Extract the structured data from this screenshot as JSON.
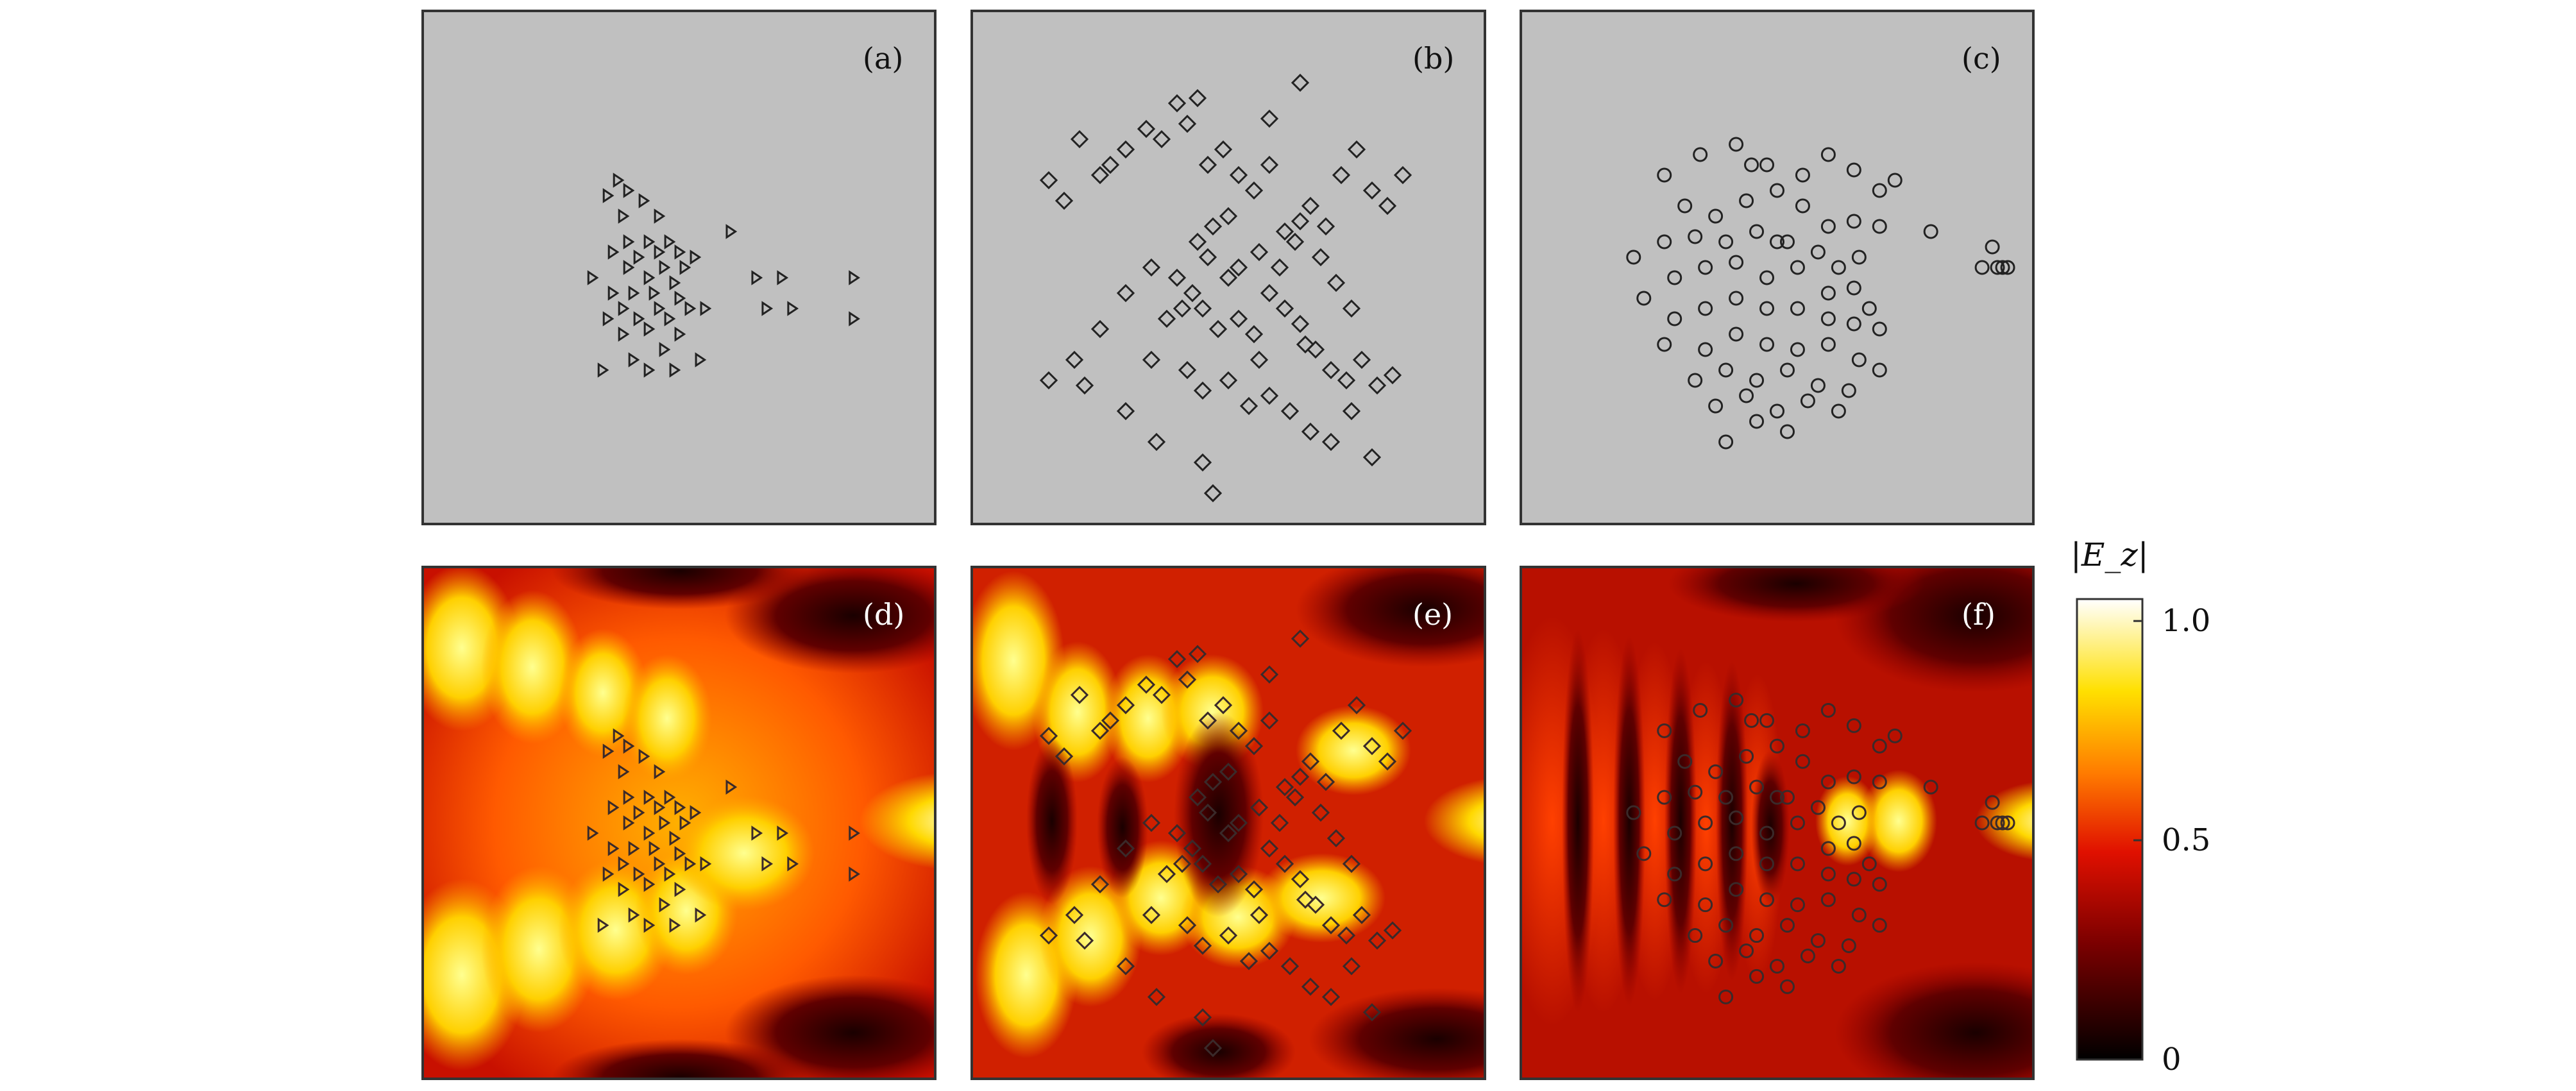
{
  "chart_data": {
    "type": "scatter",
    "panels": [
      {
        "id": "a",
        "label": "(a)",
        "marker": "triangle",
        "background": "#c0c0c0",
        "points": [
          [
            0.33,
            0.52
          ],
          [
            0.36,
            0.36
          ],
          [
            0.38,
            0.33
          ],
          [
            0.4,
            0.35
          ],
          [
            0.39,
            0.4
          ],
          [
            0.4,
            0.45
          ],
          [
            0.37,
            0.47
          ],
          [
            0.4,
            0.5
          ],
          [
            0.42,
            0.48
          ],
          [
            0.43,
            0.37
          ],
          [
            0.44,
            0.45
          ],
          [
            0.44,
            0.52
          ],
          [
            0.46,
            0.4
          ],
          [
            0.46,
            0.47
          ],
          [
            0.47,
            0.5
          ],
          [
            0.48,
            0.45
          ],
          [
            0.49,
            0.53
          ],
          [
            0.5,
            0.47
          ],
          [
            0.51,
            0.5
          ],
          [
            0.45,
            0.55
          ],
          [
            0.41,
            0.55
          ],
          [
            0.37,
            0.55
          ],
          [
            0.36,
            0.6
          ],
          [
            0.39,
            0.58
          ],
          [
            0.42,
            0.6
          ],
          [
            0.44,
            0.62
          ],
          [
            0.46,
            0.58
          ],
          [
            0.48,
            0.6
          ],
          [
            0.5,
            0.56
          ],
          [
            0.47,
            0.66
          ],
          [
            0.44,
            0.7
          ],
          [
            0.41,
            0.68
          ],
          [
            0.39,
            0.63
          ],
          [
            0.35,
            0.7
          ],
          [
            0.5,
            0.63
          ],
          [
            0.52,
            0.58
          ],
          [
            0.53,
            0.48
          ],
          [
            0.55,
            0.58
          ],
          [
            0.54,
            0.68
          ],
          [
            0.49,
            0.7
          ],
          [
            0.6,
            0.43
          ],
          [
            0.65,
            0.52
          ],
          [
            0.67,
            0.58
          ],
          [
            0.7,
            0.52
          ],
          [
            0.72,
            0.58
          ],
          [
            0.84,
            0.52
          ],
          [
            0.84,
            0.6
          ]
        ]
      },
      {
        "id": "b",
        "label": "(b)",
        "marker": "diamond",
        "background": "#c0c0c0",
        "points": [
          [
            0.15,
            0.33
          ],
          [
            0.18,
            0.37
          ],
          [
            0.21,
            0.25
          ],
          [
            0.25,
            0.32
          ],
          [
            0.27,
            0.3
          ],
          [
            0.3,
            0.27
          ],
          [
            0.34,
            0.23
          ],
          [
            0.37,
            0.25
          ],
          [
            0.4,
            0.18
          ],
          [
            0.42,
            0.22
          ],
          [
            0.44,
            0.17
          ],
          [
            0.46,
            0.3
          ],
          [
            0.49,
            0.27
          ],
          [
            0.52,
            0.32
          ],
          [
            0.55,
            0.35
          ],
          [
            0.58,
            0.3
          ],
          [
            0.61,
            0.43
          ],
          [
            0.64,
            0.41
          ],
          [
            0.66,
            0.38
          ],
          [
            0.69,
            0.42
          ],
          [
            0.72,
            0.32
          ],
          [
            0.75,
            0.27
          ],
          [
            0.78,
            0.35
          ],
          [
            0.81,
            0.38
          ],
          [
            0.84,
            0.32
          ],
          [
            0.58,
            0.21
          ],
          [
            0.64,
            0.14
          ],
          [
            0.5,
            0.4
          ],
          [
            0.47,
            0.42
          ],
          [
            0.44,
            0.45
          ],
          [
            0.46,
            0.48
          ],
          [
            0.5,
            0.52
          ],
          [
            0.52,
            0.5
          ],
          [
            0.56,
            0.47
          ],
          [
            0.6,
            0.5
          ],
          [
            0.63,
            0.45
          ],
          [
            0.68,
            0.48
          ],
          [
            0.71,
            0.53
          ],
          [
            0.74,
            0.58
          ],
          [
            0.4,
            0.52
          ],
          [
            0.43,
            0.55
          ],
          [
            0.41,
            0.58
          ],
          [
            0.45,
            0.58
          ],
          [
            0.48,
            0.62
          ],
          [
            0.52,
            0.6
          ],
          [
            0.55,
            0.63
          ],
          [
            0.58,
            0.55
          ],
          [
            0.61,
            0.58
          ],
          [
            0.64,
            0.61
          ],
          [
            0.67,
            0.66
          ],
          [
            0.7,
            0.7
          ],
          [
            0.73,
            0.72
          ],
          [
            0.76,
            0.68
          ],
          [
            0.79,
            0.73
          ],
          [
            0.82,
            0.71
          ],
          [
            0.35,
            0.5
          ],
          [
            0.3,
            0.55
          ],
          [
            0.25,
            0.62
          ],
          [
            0.2,
            0.68
          ],
          [
            0.15,
            0.72
          ],
          [
            0.22,
            0.73
          ],
          [
            0.3,
            0.78
          ],
          [
            0.35,
            0.68
          ],
          [
            0.38,
            0.6
          ],
          [
            0.42,
            0.7
          ],
          [
            0.45,
            0.74
          ],
          [
            0.5,
            0.72
          ],
          [
            0.54,
            0.77
          ],
          [
            0.58,
            0.75
          ],
          [
            0.62,
            0.78
          ],
          [
            0.66,
            0.82
          ],
          [
            0.7,
            0.84
          ],
          [
            0.74,
            0.78
          ],
          [
            0.78,
            0.87
          ],
          [
            0.45,
            0.88
          ],
          [
            0.36,
            0.84
          ],
          [
            0.47,
            0.94
          ],
          [
            0.65,
            0.65
          ],
          [
            0.56,
            0.68
          ]
        ]
      },
      {
        "id": "c",
        "label": "(c)",
        "marker": "circle",
        "background": "#c0c0c0",
        "points": [
          [
            0.28,
            0.32
          ],
          [
            0.35,
            0.28
          ],
          [
            0.42,
            0.26
          ],
          [
            0.48,
            0.3
          ],
          [
            0.55,
            0.32
          ],
          [
            0.6,
            0.28
          ],
          [
            0.65,
            0.31
          ],
          [
            0.7,
            0.35
          ],
          [
            0.73,
            0.33
          ],
          [
            0.32,
            0.38
          ],
          [
            0.38,
            0.4
          ],
          [
            0.44,
            0.37
          ],
          [
            0.5,
            0.35
          ],
          [
            0.55,
            0.38
          ],
          [
            0.6,
            0.42
          ],
          [
            0.65,
            0.41
          ],
          [
            0.7,
            0.42
          ],
          [
            0.28,
            0.45
          ],
          [
            0.34,
            0.44
          ],
          [
            0.4,
            0.45
          ],
          [
            0.46,
            0.43
          ],
          [
            0.52,
            0.45
          ],
          [
            0.58,
            0.47
          ],
          [
            0.62,
            0.5
          ],
          [
            0.66,
            0.48
          ],
          [
            0.22,
            0.48
          ],
          [
            0.3,
            0.52
          ],
          [
            0.36,
            0.5
          ],
          [
            0.42,
            0.49
          ],
          [
            0.48,
            0.52
          ],
          [
            0.54,
            0.5
          ],
          [
            0.6,
            0.55
          ],
          [
            0.65,
            0.54
          ],
          [
            0.68,
            0.58
          ],
          [
            0.24,
            0.56
          ],
          [
            0.3,
            0.6
          ],
          [
            0.36,
            0.58
          ],
          [
            0.42,
            0.56
          ],
          [
            0.48,
            0.58
          ],
          [
            0.54,
            0.58
          ],
          [
            0.6,
            0.6
          ],
          [
            0.65,
            0.61
          ],
          [
            0.7,
            0.62
          ],
          [
            0.28,
            0.65
          ],
          [
            0.36,
            0.66
          ],
          [
            0.42,
            0.63
          ],
          [
            0.48,
            0.65
          ],
          [
            0.54,
            0.66
          ],
          [
            0.6,
            0.65
          ],
          [
            0.66,
            0.68
          ],
          [
            0.7,
            0.7
          ],
          [
            0.34,
            0.72
          ],
          [
            0.4,
            0.7
          ],
          [
            0.46,
            0.72
          ],
          [
            0.52,
            0.7
          ],
          [
            0.58,
            0.73
          ],
          [
            0.64,
            0.74
          ],
          [
            0.38,
            0.77
          ],
          [
            0.44,
            0.75
          ],
          [
            0.5,
            0.78
          ],
          [
            0.56,
            0.76
          ],
          [
            0.62,
            0.78
          ],
          [
            0.46,
            0.8
          ],
          [
            0.52,
            0.82
          ],
          [
            0.4,
            0.84
          ],
          [
            0.8,
            0.43
          ],
          [
            0.9,
            0.5
          ],
          [
            0.92,
            0.46
          ],
          [
            0.93,
            0.5
          ],
          [
            0.94,
            0.5
          ],
          [
            0.95,
            0.5
          ],
          [
            0.45,
            0.3
          ],
          [
            0.5,
            0.45
          ]
        ]
      }
    ],
    "field_panels": [
      {
        "id": "d",
        "label": "(d)",
        "overlay": "a"
      },
      {
        "id": "e",
        "label": "(e)",
        "overlay": "b"
      },
      {
        "id": "f",
        "label": "(f)",
        "overlay": "c"
      }
    ],
    "colorbar": {
      "title": "|E_z|",
      "range": [
        0,
        1.05
      ],
      "ticks": [
        {
          "value": 0,
          "label": "0"
        },
        {
          "value": 0.5,
          "label": "0.5"
        },
        {
          "value": 1.0,
          "label": "1.0"
        }
      ],
      "colormap": "hot"
    },
    "colors": {
      "panel_bg": "#c0c0c0",
      "frame": "#333333",
      "marker": "#222222"
    }
  }
}
